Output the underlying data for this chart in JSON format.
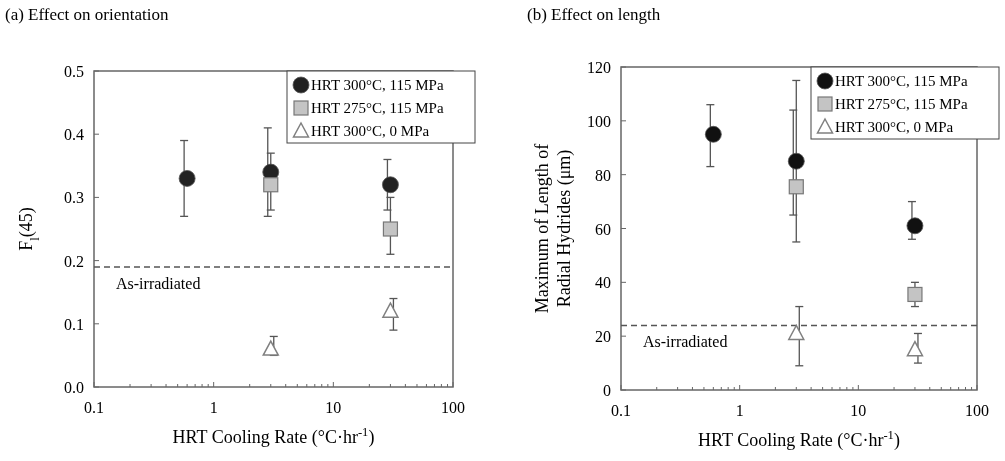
{
  "chart_data": [
    {
      "type": "scatter",
      "title": "(a) Effect on orientation",
      "xlabel": "HRT Cooling Rate (°C·hr$^{-1}$)",
      "ylabel": "F$_{l}$(45)",
      "log": "x",
      "xlim": [
        0.1,
        100
      ],
      "ylim": [
        0,
        0.5
      ],
      "xticks": [
        0.1,
        {
          "value": 0.2,
          "label": null
        },
        {
          "value": 0.3,
          "label": null
        },
        {
          "value": 0.4,
          "label": null
        },
        {
          "value": 0.5,
          "label": null
        },
        {
          "value": 0.6,
          "label": null
        },
        {
          "value": 0.7,
          "label": null
        },
        {
          "value": 0.8,
          "label": null
        },
        {
          "value": 0.9,
          "label": null
        },
        1,
        {
          "value": 2,
          "label": null
        },
        {
          "value": 3,
          "label": null
        },
        {
          "value": 4,
          "label": null
        },
        {
          "value": 5,
          "label": null
        },
        {
          "value": 6,
          "label": null
        },
        {
          "value": 7,
          "label": null
        },
        {
          "value": 8,
          "label": null
        },
        {
          "value": 9,
          "label": null
        },
        10,
        {
          "value": 20,
          "label": null
        },
        {
          "value": 30,
          "label": null
        },
        {
          "value": 40,
          "label": null
        },
        {
          "value": 50,
          "label": null
        },
        {
          "value": 60,
          "label": null
        },
        {
          "value": 70,
          "label": null
        },
        {
          "value": 80,
          "label": null
        },
        {
          "value": 90,
          "label": null
        },
        100
      ],
      "yticks": [
        {
          "value": 0,
          "label": "0.0"
        },
        0.1,
        0.2,
        0.3,
        0.4,
        0.5
      ],
      "grid": false,
      "legend": "top right",
      "series": [
        {
          "name": "HRT 300°C, 115 MPa",
          "color": "#222222",
          "marker": "circle",
          "x": [
            0.6,
            3,
            30
          ],
          "values": [
            0.33,
            0.34,
            0.32
          ],
          "errors": [
            [
              0.27,
              0.39
            ],
            [
              0.27,
              0.41
            ],
            [
              0.28,
              0.36
            ]
          ]
        },
        {
          "name": "HRT 275°C, 115 MPa",
          "color": "#c4c4c4",
          "marker": "square",
          "x": [
            3,
            30
          ],
          "values": [
            0.32,
            0.25
          ],
          "errors": [
            [
              0.28,
              0.37
            ],
            [
              0.21,
              0.3
            ]
          ]
        },
        {
          "name": "HRT 300°C, 0 MPa",
          "color": "#808080",
          "marker": "triangle",
          "x": [
            3,
            30
          ],
          "values": [
            0.06,
            0.12
          ],
          "errors": [
            [
              0.05,
              0.08
            ],
            [
              0.09,
              0.14
            ]
          ]
        }
      ],
      "ref_lines": [
        {
          "axis": "y",
          "value": 0.19,
          "label": "As-irradiated",
          "color": "#555555",
          "line_style": "dashed"
        }
      ]
    },
    {
      "type": "scatter",
      "title": "(b) Effect on length",
      "xlabel": "HRT Cooling Rate (°C·hr$^{-1}$)",
      "ylabel": "Maximum of Length of Radial Hydrides (μm)",
      "log": "x",
      "xlim": [
        0.1,
        100
      ],
      "ylim": [
        0,
        120
      ],
      "xticks": [
        0.1,
        {
          "value": 0.2,
          "label": null
        },
        {
          "value": 0.3,
          "label": null
        },
        {
          "value": 0.4,
          "label": null
        },
        {
          "value": 0.5,
          "label": null
        },
        {
          "value": 0.6,
          "label": null
        },
        {
          "value": 0.7,
          "label": null
        },
        {
          "value": 0.8,
          "label": null
        },
        {
          "value": 0.9,
          "label": null
        },
        1,
        {
          "value": 2,
          "label": null
        },
        {
          "value": 3,
          "label": null
        },
        {
          "value": 4,
          "label": null
        },
        {
          "value": 5,
          "label": null
        },
        {
          "value": 6,
          "label": null
        },
        {
          "value": 7,
          "label": null
        },
        {
          "value": 8,
          "label": null
        },
        {
          "value": 9,
          "label": null
        },
        10,
        {
          "value": 20,
          "label": null
        },
        {
          "value": 30,
          "label": null
        },
        {
          "value": 40,
          "label": null
        },
        {
          "value": 50,
          "label": null
        },
        {
          "value": 60,
          "label": null
        },
        {
          "value": 70,
          "label": null
        },
        {
          "value": 80,
          "label": null
        },
        {
          "value": 90,
          "label": null
        },
        100
      ],
      "yticks": [
        0,
        20,
        40,
        60,
        80,
        100,
        120
      ],
      "grid": false,
      "legend": "top right",
      "series": [
        {
          "name": "HRT 300°C, 115 MPa",
          "color": "#111111",
          "marker": "circle",
          "x": [
            0.6,
            3,
            30
          ],
          "values": [
            95,
            85,
            61
          ],
          "errors": [
            [
              83,
              106
            ],
            [
              65,
              104
            ],
            [
              56,
              70
            ]
          ]
        },
        {
          "name": "HRT 275°C, 115 MPa",
          "color": "#c4c4c4",
          "marker": "square",
          "x": [
            3,
            30
          ],
          "values": [
            75.5,
            35.5
          ],
          "errors": [
            [
              55,
              115
            ],
            [
              31,
              40
            ]
          ]
        },
        {
          "name": "HRT 300°C, 0 MPa",
          "color": "#808080",
          "marker": "triangle",
          "x": [
            3,
            30
          ],
          "values": [
            21,
            15
          ],
          "errors": [
            [
              9,
              31
            ],
            [
              10,
              21
            ]
          ]
        }
      ],
      "ref_lines": [
        {
          "axis": "y",
          "value": 24,
          "label": "As-irradiated",
          "color": "#555555",
          "line_style": "dashed"
        }
      ]
    }
  ]
}
